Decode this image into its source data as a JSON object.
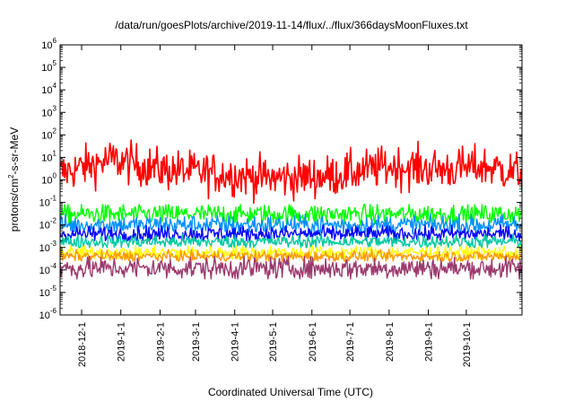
{
  "chart_data": {
    "type": "line",
    "title": "/data/run/goesPlots/archive/2019-11-14/flux/../flux/366daysMoonFluxes.txt",
    "xlabel": "Coordinated Universal Time (UTC)",
    "ylabel_parts": {
      "base": "protons/cm",
      "sup": "2",
      "rest": "-s-sr-MeV"
    },
    "xscale": "time",
    "xlim": [
      "2018-11-14",
      "2019-11-14"
    ],
    "x_ticks": [
      "2018-12-1",
      "2019-1-1",
      "2019-2-1",
      "2019-3-1",
      "2019-4-1",
      "2019-5-1",
      "2019-6-1",
      "2019-7-1",
      "2019-8-1",
      "2019-9-1",
      "2019-10-1"
    ],
    "yscale": "log",
    "ylim": [
      1e-06,
      1000000.0
    ],
    "y_ticks": [
      {
        "value": 1e-06,
        "base": "10",
        "exp": "-6"
      },
      {
        "value": 1e-05,
        "base": "10",
        "exp": "-5"
      },
      {
        "value": 0.0001,
        "base": "10",
        "exp": "-4"
      },
      {
        "value": 0.001,
        "base": "10",
        "exp": "-3"
      },
      {
        "value": 0.01,
        "base": "10",
        "exp": "-2"
      },
      {
        "value": 0.1,
        "base": "10",
        "exp": "-1"
      },
      {
        "value": 1,
        "base": "10",
        "exp": "0"
      },
      {
        "value": 10,
        "base": "10",
        "exp": "1"
      },
      {
        "value": 100,
        "base": "10",
        "exp": "2"
      },
      {
        "value": 1000,
        "base": "10",
        "exp": "3"
      },
      {
        "value": 10000,
        "base": "10",
        "exp": "4"
      },
      {
        "value": 100000,
        "base": "10",
        "exp": "5"
      },
      {
        "value": 1000000,
        "base": "10",
        "exp": "6"
      }
    ],
    "grid": false,
    "legend": "none",
    "series": [
      {
        "color": "#ff0000",
        "typical": 3,
        "band_low": 0.3,
        "band_high": 20,
        "profile": [
          {
            "x": "2018-11-14",
            "y": 2
          },
          {
            "x": "2018-12-25",
            "y": 8
          },
          {
            "x": "2019-2-1",
            "y": 3
          },
          {
            "x": "2019-3-15",
            "y": 2
          },
          {
            "x": "2019-5-1",
            "y": 1.2
          },
          {
            "x": "2019-6-15",
            "y": 1.5
          },
          {
            "x": "2019-8-1",
            "y": 4
          },
          {
            "x": "2019-9-15",
            "y": 3
          },
          {
            "x": "2019-10-15",
            "y": 4
          },
          {
            "x": "2019-11-14",
            "y": 2
          }
        ]
      },
      {
        "color": "#00ff00",
        "typical": 0.03,
        "band_low": 0.01,
        "band_high": 0.08
      },
      {
        "color": "#0090ff",
        "typical": 0.01,
        "band_low": 0.004,
        "band_high": 0.03
      },
      {
        "color": "#0000ff",
        "typical": 0.004,
        "band_low": 0.002,
        "band_high": 0.01
      },
      {
        "color": "#00c8a0",
        "typical": 0.0018,
        "band_low": 0.001,
        "band_high": 0.004
      },
      {
        "color": "#ffff00",
        "typical": 0.0006,
        "band_low": 0.0003,
        "band_high": 0.0012
      },
      {
        "color": "#ff9900",
        "typical": 0.0004,
        "band_low": 0.00025,
        "band_high": 0.0008
      },
      {
        "color": "#9b3a6e",
        "typical": 0.00012,
        "band_low": 4e-05,
        "band_high": 0.0004
      }
    ]
  }
}
